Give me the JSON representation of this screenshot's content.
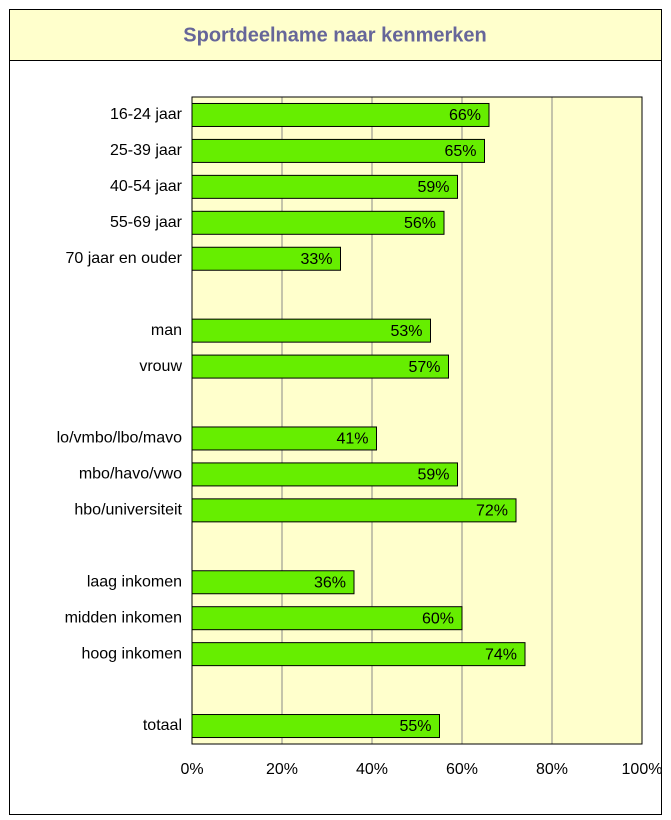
{
  "chart_data": {
    "type": "bar",
    "orientation": "horizontal",
    "title": "Sportdeelname naar kenmerken",
    "categories": [
      "16-24 jaar",
      "25-39 jaar",
      "40-54 jaar",
      "55-69 jaar",
      "70 jaar en ouder",
      null,
      "man",
      "vrouw",
      null,
      "lo/vmbo/lbo/mavo",
      "mbo/havo/vwo",
      "hbo/universiteit",
      null,
      "laag inkomen",
      "midden inkomen",
      "hoog inkomen",
      null,
      "totaal"
    ],
    "values": [
      66,
      65,
      59,
      56,
      33,
      null,
      53,
      57,
      null,
      41,
      59,
      72,
      null,
      36,
      60,
      74,
      null,
      55
    ],
    "value_labels": [
      "66%",
      "65%",
      "59%",
      "56%",
      "33%",
      null,
      "53%",
      "57%",
      null,
      "41%",
      "59%",
      "72%",
      null,
      "36%",
      "60%",
      "74%",
      null,
      "55%"
    ],
    "color": "#66ee00",
    "xlim": [
      0,
      100
    ],
    "xticks": [
      {
        "value": 0,
        "label": "0%"
      },
      {
        "value": 20,
        "label": "20%"
      },
      {
        "value": 40,
        "label": "40%"
      },
      {
        "value": 60,
        "label": "60%"
      },
      {
        "value": 80,
        "label": "80%"
      },
      {
        "value": 100,
        "label": "100%"
      }
    ],
    "grid": true
  }
}
